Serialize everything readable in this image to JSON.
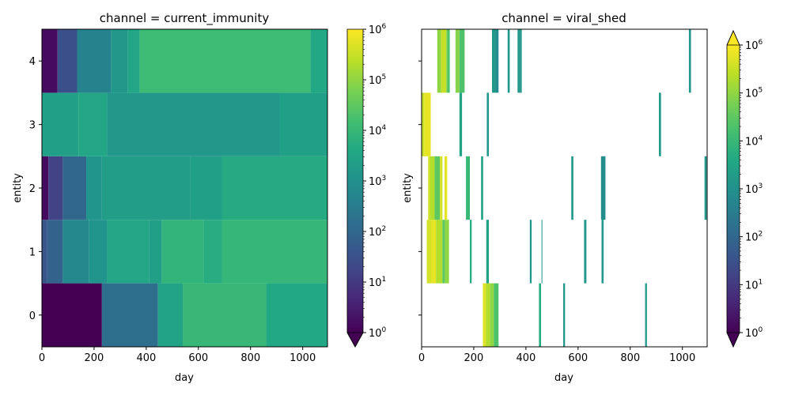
{
  "chart_data": [
    {
      "type": "heatmap",
      "title": "channel = current_immunity",
      "xlabel": "day",
      "ylabel": "entity",
      "xlim": [
        0,
        1095
      ],
      "xticks": [
        0,
        200,
        400,
        600,
        800,
        1000
      ],
      "yticks": [
        0,
        1,
        2,
        3,
        4
      ],
      "colorbar": {
        "scale": "log",
        "min": 1,
        "max": 1000000,
        "ticks": [
          "10^0",
          "10^1",
          "10^2",
          "10^3",
          "10^4",
          "10^5",
          "10^6"
        ],
        "extend": "min"
      },
      "rows": [
        {
          "entity": 0,
          "segments": [
            [
              0,
              230,
              1
            ],
            [
              230,
              445,
              150
            ],
            [
              445,
              540,
              3000
            ],
            [
              540,
              860,
              10000
            ],
            [
              860,
              1095,
              4000
            ]
          ]
        },
        {
          "entity": 1,
          "segments": [
            [
              0,
              20,
              40
            ],
            [
              20,
              80,
              80
            ],
            [
              80,
              180,
              600
            ],
            [
              180,
              250,
              1200
            ],
            [
              250,
              410,
              3500
            ],
            [
              410,
              460,
              2500
            ],
            [
              460,
              620,
              8000
            ],
            [
              620,
              690,
              5000
            ],
            [
              690,
              1095,
              9000
            ]
          ]
        },
        {
          "entity": 2,
          "segments": [
            [
              0,
              25,
              1.5
            ],
            [
              25,
              80,
              15
            ],
            [
              80,
              170,
              100
            ],
            [
              170,
              230,
              1200
            ],
            [
              230,
              570,
              2000
            ],
            [
              570,
              690,
              2500
            ],
            [
              690,
              1095,
              4500
            ]
          ]
        },
        {
          "entity": 3,
          "segments": [
            [
              0,
              140,
              2500
            ],
            [
              140,
              250,
              3500
            ],
            [
              250,
              910,
              1500
            ],
            [
              910,
              1095,
              2500
            ]
          ]
        },
        {
          "entity": 4,
          "segments": [
            [
              0,
              60,
              1.5
            ],
            [
              60,
              135,
              30
            ],
            [
              135,
              265,
              450
            ],
            [
              265,
              330,
              1500
            ],
            [
              330,
              375,
              3500
            ],
            [
              375,
              1030,
              12000
            ],
            [
              1030,
              1095,
              4000
            ]
          ]
        }
      ]
    },
    {
      "type": "heatmap",
      "title": "channel = viral_shed",
      "xlabel": "day",
      "ylabel": "entity",
      "xlim": [
        0,
        1095
      ],
      "xticks": [
        0,
        200,
        400,
        600,
        800,
        1000
      ],
      "yticks": [
        0,
        1,
        2,
        3,
        4
      ],
      "colorbar": {
        "scale": "log",
        "min": 1,
        "max": 1000000,
        "ticks": [
          "10^0",
          "10^1",
          "10^2",
          "10^3",
          "10^4",
          "10^5",
          "10^6"
        ],
        "extend": "both"
      },
      "rows": [
        {
          "entity": 0,
          "segments": [
            [
              235,
              247,
              500000
            ],
            [
              247,
              262,
              200000
            ],
            [
              262,
              277,
              100000
            ],
            [
              277,
              295,
              20000
            ],
            [
              450,
              458,
              5000
            ],
            [
              543,
              550,
              1500
            ],
            [
              857,
              864,
              1500
            ]
          ]
        },
        {
          "entity": 1,
          "segments": [
            [
              20,
              38,
              400000
            ],
            [
              38,
              55,
              600000
            ],
            [
              55,
              80,
              200000
            ],
            [
              80,
              90,
              30000
            ],
            [
              90,
              105,
              100000
            ],
            [
              185,
              192,
              5000
            ],
            [
              248,
              258,
              3000
            ],
            [
              415,
              422,
              1500
            ],
            [
              460,
              463,
              1500
            ],
            [
              623,
              632,
              1500
            ],
            [
              690,
              698,
              1500
            ]
          ]
        },
        {
          "entity": 2,
          "segments": [
            [
              25,
              32,
              400000
            ],
            [
              32,
              50,
              200000
            ],
            [
              50,
              70,
              30000
            ],
            [
              70,
              80,
              400000
            ],
            [
              88,
              98,
              600000
            ],
            [
              170,
              185,
              10000
            ],
            [
              228,
              236,
              3000
            ],
            [
              574,
              582,
              1500
            ],
            [
              688,
              705,
              800
            ],
            [
              1085,
              1093,
              1500
            ]
          ]
        },
        {
          "entity": 3,
          "segments": [
            [
              0,
              10,
              300000
            ],
            [
              10,
              35,
              600000
            ],
            [
              145,
              155,
              3000
            ],
            [
              250,
              258,
              1500
            ],
            [
              910,
              918,
              1500
            ]
          ]
        },
        {
          "entity": 4,
          "segments": [
            [
              60,
              75,
              100000
            ],
            [
              75,
              95,
              300000
            ],
            [
              95,
              100,
              50000
            ],
            [
              100,
              108,
              20000
            ],
            [
              130,
              145,
              80000
            ],
            [
              145,
              165,
              20000
            ],
            [
              270,
              285,
              1500
            ],
            [
              285,
              295,
              800
            ],
            [
              330,
              338,
              1500
            ],
            [
              368,
              378,
              1500
            ],
            [
              378,
              384,
              1500
            ],
            [
              1025,
              1033,
              1500
            ]
          ]
        }
      ]
    }
  ],
  "labels": {
    "left_title": "channel = current_immunity",
    "right_title": "channel = viral_shed",
    "xlabel": "day",
    "ylabel": "entity",
    "xtick_labels": [
      "0",
      "200",
      "400",
      "600",
      "800",
      "1000"
    ],
    "ytick_labels": [
      "0",
      "1",
      "2",
      "3",
      "4"
    ],
    "cbar_base": "10",
    "cbar_exponents": [
      "0",
      "1",
      "2",
      "3",
      "4",
      "5",
      "6"
    ]
  }
}
